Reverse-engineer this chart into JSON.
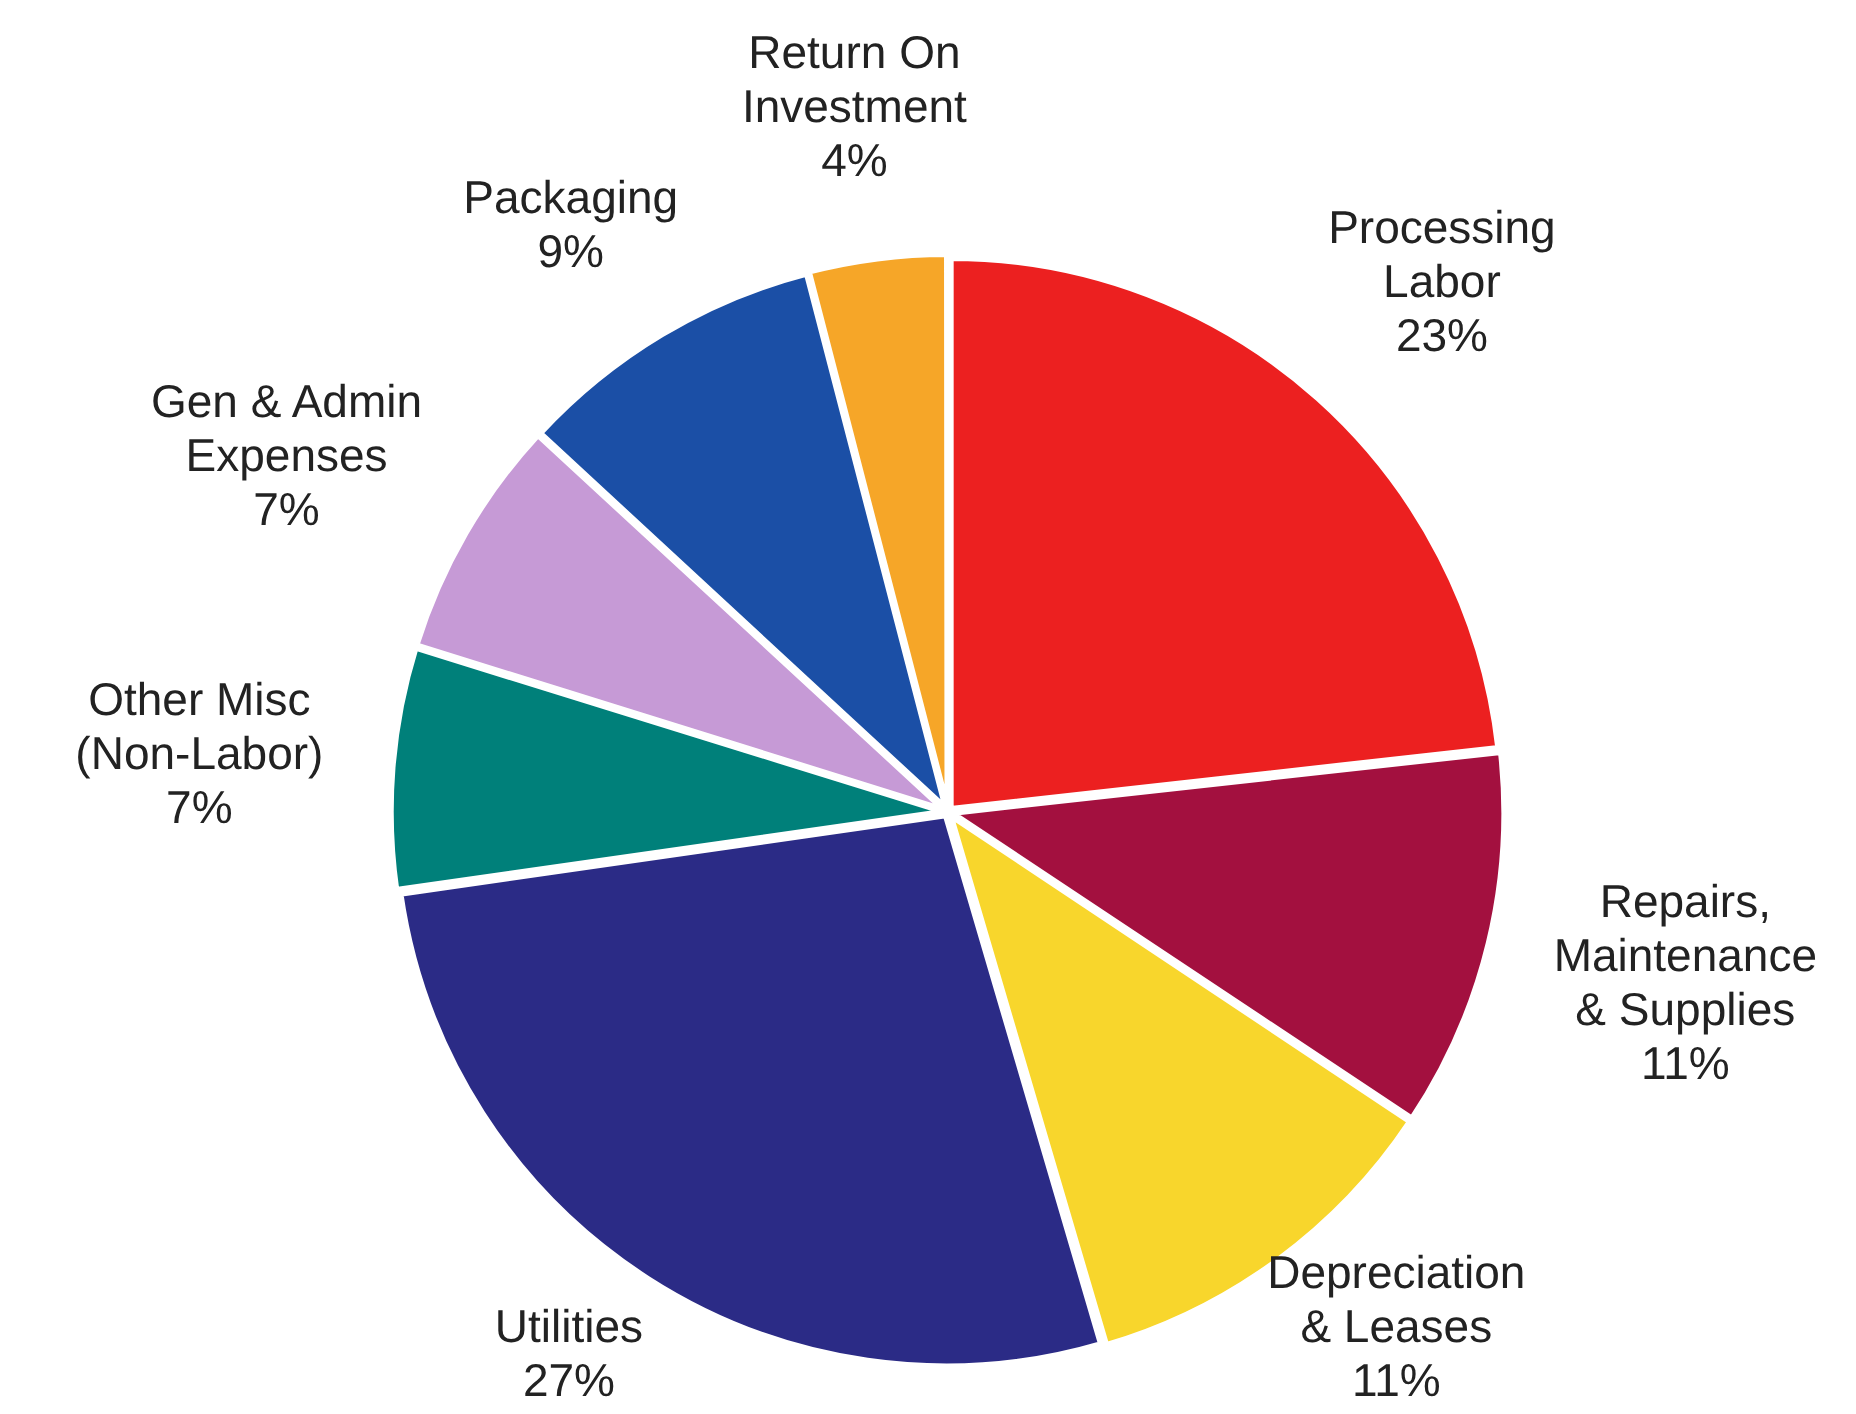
{
  "chart_data": {
    "type": "pie",
    "categories": [
      "Processing\nLabor",
      "Repairs,\nMaintenance\n& Supplies",
      "Depreciation\n& Leases",
      "Utilities",
      "Other Misc\n(Non-Labor)",
      "Gen & Admin\nExpenses",
      "Packaging",
      "Return On\nInvestment"
    ],
    "values": [
      23,
      11,
      11,
      27,
      7,
      7,
      9,
      4
    ],
    "value_labels": [
      "23%",
      "11%",
      "11%",
      "27%",
      "7%",
      "7%",
      "9%",
      "4%"
    ],
    "colors": [
      "#ec2020",
      "#a3103f",
      "#f8d62c",
      "#2b2b86",
      "#00807a",
      "#c69ad6",
      "#1b4fa6",
      "#f6a628"
    ],
    "legend": false
  }
}
